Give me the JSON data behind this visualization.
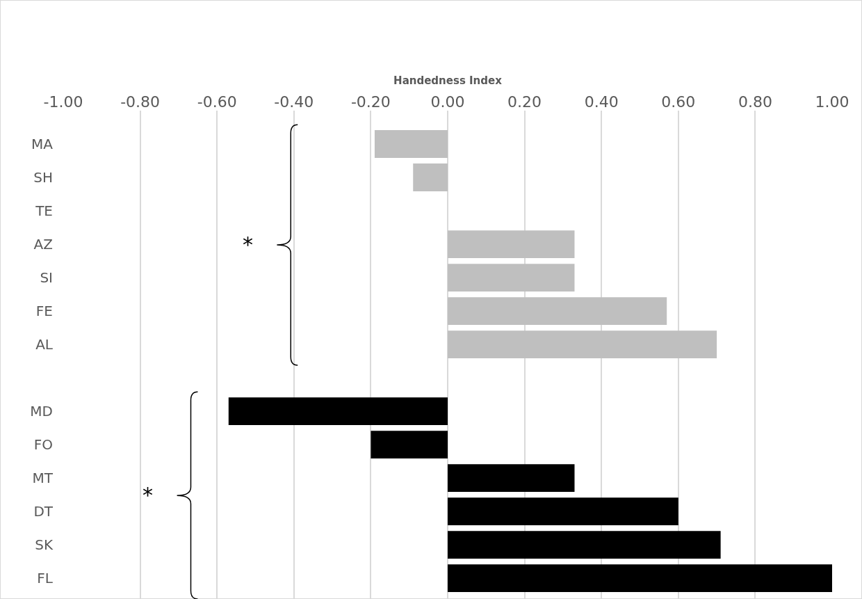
{
  "chart_data": {
    "type": "bar",
    "orientation": "horizontal",
    "xlabel": "Handedness Index",
    "categories": [
      "MA",
      "SH",
      "TE",
      "AZ",
      "SI",
      "FE",
      "AL",
      null,
      "MD",
      "FO",
      "MT",
      "DT",
      "SK",
      "FL"
    ],
    "values": [
      -0.19,
      -0.09,
      0,
      0.33,
      0.33,
      0.57,
      0.7,
      null,
      -0.57,
      -0.2,
      0.33,
      0.6,
      0.71,
      1.0
    ],
    "colors": [
      "#bfbfbf",
      "#bfbfbf",
      "#bfbfbf",
      "#bfbfbf",
      "#bfbfbf",
      "#bfbfbf",
      "#bfbfbf",
      "#bfbfbf",
      "#000000",
      "#000000",
      "#000000",
      "#000000",
      "#000000",
      "#000000"
    ],
    "xlim": [
      -1,
      1
    ],
    "xticks": [
      {
        "value": -1,
        "label": "-1.00"
      },
      {
        "value": -0.8,
        "label": "-0.80"
      },
      {
        "value": -0.6,
        "label": "-0.60"
      },
      {
        "value": -0.4,
        "label": "-0.40"
      },
      {
        "value": -0.2,
        "label": "-0.20"
      },
      {
        "value": 0,
        "label": "0.00"
      },
      {
        "value": 0.2,
        "label": "0.20"
      },
      {
        "value": 0.4,
        "label": "0.40"
      },
      {
        "value": 0.6,
        "label": "0.60"
      },
      {
        "value": 0.8,
        "label": "0.80"
      },
      {
        "value": 1,
        "label": "1.00"
      }
    ],
    "grid": "x",
    "annotations": [
      "*",
      "*"
    ]
  }
}
